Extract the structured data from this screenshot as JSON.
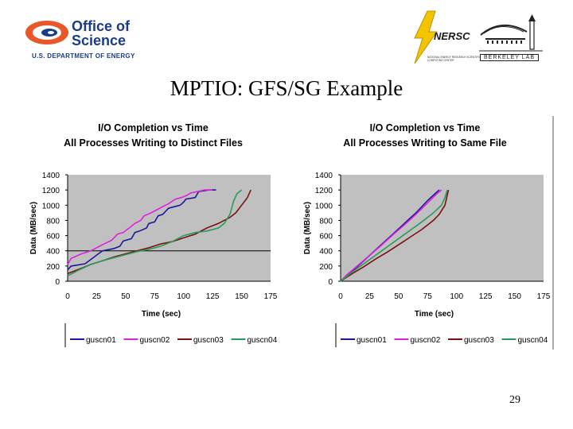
{
  "header": {
    "doe_logo": {
      "line1": "Office of",
      "line2": "Science",
      "line3": "U.S. DEPARTMENT OF ENERGY"
    },
    "nersc_logo": {
      "word": "NERSC",
      "sub": "NATIONAL ENERGY RESEARCH SCIENTIFIC COMPUTING CENTER"
    },
    "berkeley_logo": {
      "word": "BERKELEY LAB"
    }
  },
  "slide": {
    "title": "MPTIO: GFS/SG Example",
    "page_number": "29"
  },
  "colors": {
    "guscn01": "#1a1a9a",
    "guscn02": "#e020e0",
    "guscn03": "#7a1010",
    "guscn04": "#2a9a5a",
    "plot_bg": "#c0c0c0"
  },
  "chart_data": [
    {
      "type": "line",
      "title": "I/O Completion vs Time",
      "subtitle": "All Processes Writing to Distinct Files",
      "xlabel": "Time (sec)",
      "ylabel": "Data (MB/sec)",
      "xlim": [
        0,
        175
      ],
      "ylim": [
        0,
        1400
      ],
      "xticks": [
        "0",
        "25",
        "50",
        "75",
        "100",
        "125",
        "150",
        "175"
      ],
      "yticks": [
        "0",
        "200",
        "400",
        "600",
        "800",
        "1000",
        "1200",
        "1400"
      ],
      "grid": "horizontal line at 400",
      "legend_position": "bottom",
      "series": [
        {
          "name": "guscn01",
          "x": [
            0,
            3,
            15,
            30,
            40,
            45,
            48,
            55,
            58,
            62,
            68,
            70,
            75,
            78,
            82,
            87,
            92,
            97,
            100,
            102,
            110,
            113,
            122,
            128
          ],
          "y": [
            150,
            200,
            230,
            400,
            430,
            460,
            530,
            560,
            640,
            660,
            700,
            760,
            780,
            860,
            880,
            960,
            980,
            1000,
            1040,
            1080,
            1100,
            1180,
            1200,
            1200
          ]
        },
        {
          "name": "guscn02",
          "x": [
            0,
            3,
            12,
            20,
            30,
            38,
            43,
            48,
            53,
            58,
            63,
            66,
            72,
            77,
            82,
            87,
            93,
            98,
            103,
            106,
            112,
            118,
            125
          ],
          "y": [
            220,
            300,
            360,
            400,
            480,
            540,
            620,
            640,
            700,
            760,
            800,
            860,
            900,
            940,
            980,
            1020,
            1080,
            1100,
            1130,
            1160,
            1180,
            1200,
            1200
          ]
        },
        {
          "name": "guscn03",
          "x": [
            0,
            10,
            20,
            30,
            40,
            50,
            60,
            70,
            80,
            90,
            100,
            110,
            120,
            130,
            140,
            145,
            150,
            155,
            158
          ],
          "y": [
            100,
            160,
            220,
            270,
            320,
            360,
            400,
            440,
            490,
            520,
            570,
            620,
            700,
            760,
            840,
            900,
            1000,
            1100,
            1200
          ]
        },
        {
          "name": "guscn04",
          "x": [
            0,
            10,
            20,
            30,
            40,
            50,
            60,
            70,
            80,
            90,
            100,
            110,
            120,
            130,
            135,
            140,
            143,
            146,
            150
          ],
          "y": [
            70,
            150,
            220,
            270,
            310,
            350,
            390,
            420,
            460,
            520,
            600,
            640,
            660,
            700,
            760,
            880,
            1050,
            1150,
            1200
          ]
        }
      ]
    },
    {
      "type": "line",
      "title": "I/O Completion vs Time",
      "subtitle": "All Processes Writing to Same File",
      "xlabel": "Time (sec)",
      "ylabel": "Data (MB/sec)",
      "xlim": [
        0,
        175
      ],
      "ylim": [
        0,
        1400
      ],
      "xticks": [
        "0",
        "25",
        "50",
        "75",
        "100",
        "125",
        "150",
        "175"
      ],
      "yticks": [
        "0",
        "200",
        "400",
        "600",
        "800",
        "1000",
        "1200",
        "1400"
      ],
      "legend_position": "bottom",
      "series": [
        {
          "name": "guscn01",
          "x": [
            0,
            5,
            15,
            25,
            35,
            45,
            55,
            65,
            75,
            82,
            85
          ],
          "y": [
            0,
            70,
            200,
            340,
            480,
            620,
            760,
            900,
            1060,
            1160,
            1200
          ]
        },
        {
          "name": "guscn02",
          "x": [
            0,
            5,
            15,
            25,
            35,
            45,
            55,
            65,
            75,
            83,
            87
          ],
          "y": [
            0,
            80,
            210,
            340,
            470,
            610,
            740,
            880,
            1030,
            1150,
            1200
          ]
        },
        {
          "name": "guscn03",
          "x": [
            0,
            10,
            20,
            30,
            40,
            50,
            60,
            70,
            80,
            85,
            90,
            93
          ],
          "y": [
            0,
            100,
            190,
            290,
            380,
            480,
            580,
            680,
            800,
            880,
            1000,
            1200
          ]
        },
        {
          "name": "guscn04",
          "x": [
            0,
            10,
            20,
            30,
            40,
            50,
            60,
            70,
            80,
            87,
            90,
            92
          ],
          "y": [
            0,
            120,
            230,
            340,
            450,
            560,
            670,
            780,
            900,
            1000,
            1100,
            1200
          ]
        }
      ]
    }
  ]
}
